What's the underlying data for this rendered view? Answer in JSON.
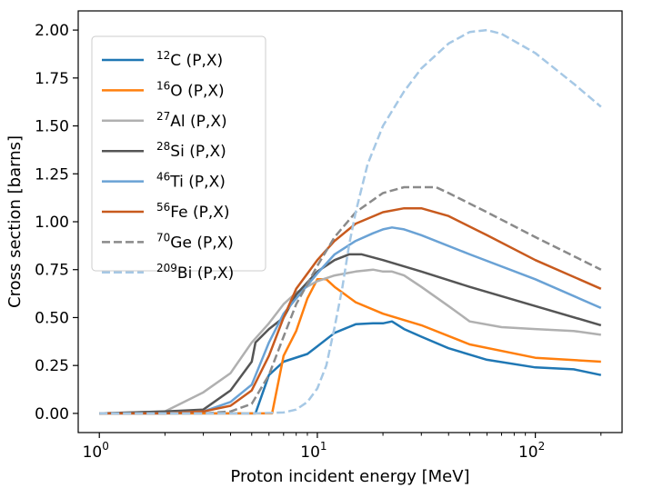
{
  "chart_data": {
    "type": "line",
    "title": "",
    "xlabel": "Proton incident energy [MeV]",
    "ylabel": "Cross section [barns]",
    "xscale": "log",
    "xlim": [
      0.8,
      250
    ],
    "ylim": [
      -0.1,
      2.1
    ],
    "xticks": [
      {
        "value": 1,
        "base": "10",
        "exp": "0"
      },
      {
        "value": 10,
        "base": "10",
        "exp": "1"
      },
      {
        "value": 100,
        "base": "10",
        "exp": "2"
      }
    ],
    "yticks": [
      {
        "value": 0.0,
        "label": "0.00"
      },
      {
        "value": 0.25,
        "label": "0.25"
      },
      {
        "value": 0.5,
        "label": "0.50"
      },
      {
        "value": 0.75,
        "label": "0.75"
      },
      {
        "value": 1.0,
        "label": "1.00"
      },
      {
        "value": 1.25,
        "label": "1.25"
      },
      {
        "value": 1.5,
        "label": "1.50"
      },
      {
        "value": 1.75,
        "label": "1.75"
      },
      {
        "value": 2.0,
        "label": "2.00"
      }
    ],
    "legend_position": "top-left",
    "series": [
      {
        "name": "12C (P,X)",
        "mass": "12",
        "element": "C",
        "reaction": " (P,X)",
        "color": "#1f77b4",
        "dash": "solid",
        "x": [
          1,
          2,
          3,
          4,
          5,
          5.2,
          6,
          7,
          9,
          10,
          12,
          15,
          18,
          20,
          22,
          25,
          30,
          40,
          60,
          100,
          150,
          200
        ],
        "y": [
          0,
          0,
          0,
          0,
          0,
          0,
          0.2,
          0.27,
          0.31,
          0.35,
          0.42,
          0.465,
          0.47,
          0.47,
          0.48,
          0.44,
          0.4,
          0.34,
          0.28,
          0.24,
          0.23,
          0.2
        ]
      },
      {
        "name": "16O (P,X)",
        "mass": "16",
        "element": "O",
        "reaction": " (P,X)",
        "color": "#ff7f0e",
        "dash": "solid",
        "x": [
          1,
          3,
          5,
          6.2,
          7,
          8,
          9,
          10,
          11,
          12,
          15,
          20,
          30,
          50,
          100,
          200
        ],
        "y": [
          0,
          0,
          0,
          0,
          0.3,
          0.43,
          0.6,
          0.7,
          0.7,
          0.66,
          0.58,
          0.52,
          0.46,
          0.36,
          0.29,
          0.27
        ]
      },
      {
        "name": "27Al (P,X)",
        "mass": "27",
        "element": "Al",
        "reaction": " (P,X)",
        "color": "#b0b0b0",
        "dash": "solid",
        "x": [
          1,
          2,
          3,
          4,
          5,
          6,
          7,
          8,
          10,
          12,
          15,
          18,
          20,
          22,
          25,
          30,
          40,
          50,
          70,
          100,
          150,
          200
        ],
        "y": [
          0,
          0.01,
          0.11,
          0.21,
          0.37,
          0.47,
          0.57,
          0.63,
          0.69,
          0.72,
          0.74,
          0.75,
          0.74,
          0.74,
          0.72,
          0.66,
          0.56,
          0.48,
          0.45,
          0.44,
          0.43,
          0.41
        ]
      },
      {
        "name": "28Si (P,X)",
        "mass": "28",
        "element": "Si",
        "reaction": " (P,X)",
        "color": "#555555",
        "dash": "solid",
        "x": [
          1,
          2,
          3,
          4,
          5,
          5.2,
          6,
          7,
          8,
          10,
          12,
          14,
          16,
          20,
          30,
          50,
          100,
          200
        ],
        "y": [
          0,
          0.01,
          0.02,
          0.12,
          0.27,
          0.37,
          0.44,
          0.5,
          0.62,
          0.74,
          0.8,
          0.83,
          0.83,
          0.8,
          0.74,
          0.66,
          0.56,
          0.46
        ]
      },
      {
        "name": "46Ti (P,X)",
        "mass": "46",
        "element": "Ti",
        "reaction": " (P,X)",
        "color": "#6aa2d5",
        "dash": "solid",
        "x": [
          1,
          2,
          3,
          4,
          5,
          6,
          7,
          8,
          10,
          12,
          15,
          18,
          20,
          22,
          25,
          30,
          50,
          100,
          200
        ],
        "y": [
          0,
          0,
          0.01,
          0.06,
          0.15,
          0.37,
          0.52,
          0.6,
          0.73,
          0.83,
          0.9,
          0.94,
          0.96,
          0.97,
          0.96,
          0.93,
          0.83,
          0.7,
          0.55
        ]
      },
      {
        "name": "56Fe (P,X)",
        "mass": "56",
        "element": "Fe",
        "reaction": " (P,X)",
        "color": "#c85a1e",
        "dash": "solid",
        "x": [
          1,
          2,
          3,
          4,
          5,
          6,
          7,
          8,
          10,
          12,
          15,
          20,
          25,
          30,
          40,
          60,
          100,
          200
        ],
        "y": [
          0,
          0,
          0.01,
          0.04,
          0.12,
          0.3,
          0.5,
          0.65,
          0.8,
          0.9,
          0.99,
          1.05,
          1.07,
          1.07,
          1.03,
          0.93,
          0.8,
          0.65
        ]
      },
      {
        "name": "70Ge (P,X)",
        "mass": "70",
        "element": "Ge",
        "reaction": " (P,X)",
        "color": "#8a8a8a",
        "dash": "dashed",
        "x": [
          1,
          2,
          3,
          4,
          5,
          6,
          7,
          8,
          10,
          12,
          15,
          20,
          25,
          30,
          35,
          40,
          60,
          100,
          200
        ],
        "y": [
          0,
          0,
          0,
          0.01,
          0.05,
          0.2,
          0.4,
          0.57,
          0.77,
          0.92,
          1.05,
          1.15,
          1.18,
          1.18,
          1.18,
          1.15,
          1.05,
          0.92,
          0.75
        ]
      },
      {
        "name": "209Bi (P,X)",
        "mass": "209",
        "element": "Bi",
        "reaction": " (P,X)",
        "color": "#a6c8e5",
        "dash": "dashed",
        "x": [
          1,
          5,
          7,
          8,
          9,
          10,
          11,
          12,
          13,
          14,
          15,
          17,
          20,
          25,
          30,
          40,
          50,
          60,
          70,
          100,
          150,
          200
        ],
        "y": [
          0,
          0,
          0.005,
          0.02,
          0.06,
          0.13,
          0.25,
          0.45,
          0.65,
          0.88,
          1.05,
          1.3,
          1.5,
          1.68,
          1.8,
          1.93,
          1.99,
          2.0,
          1.98,
          1.88,
          1.72,
          1.6
        ]
      }
    ]
  }
}
